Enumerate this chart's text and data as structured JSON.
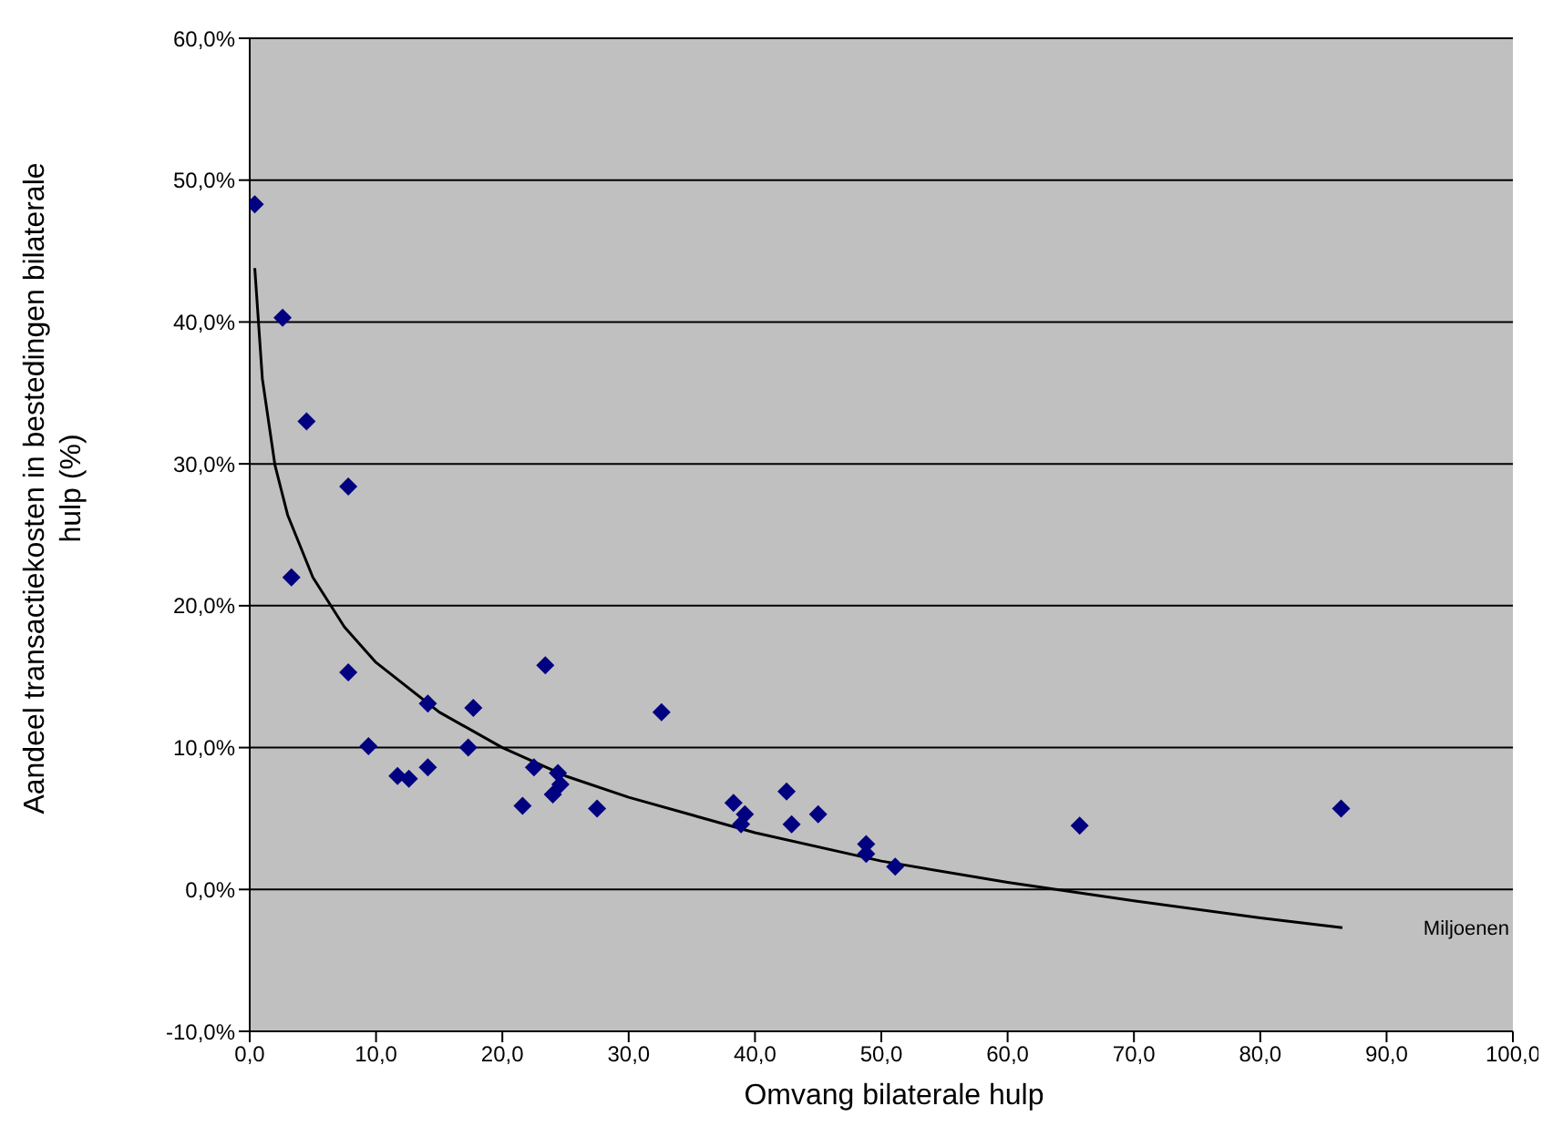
{
  "chart_data": {
    "type": "scatter",
    "xlabel": "Omvang bilaterale hulp",
    "ylabel": "Aandeel transactiekosten in bestedingen bilaterale hulp (%)",
    "annotations": [
      "Miljoenen"
    ],
    "xlim": [
      0,
      100
    ],
    "xticks": [
      {
        "value": 0,
        "label": "0,0"
      },
      {
        "value": 10,
        "label": "10,0"
      },
      {
        "value": 20,
        "label": "20,0"
      },
      {
        "value": 30,
        "label": "30,0"
      },
      {
        "value": 40,
        "label": "40,0"
      },
      {
        "value": 50,
        "label": "50,0"
      },
      {
        "value": 60,
        "label": "60,0"
      },
      {
        "value": 70,
        "label": "70,0"
      },
      {
        "value": 80,
        "label": "80,0"
      },
      {
        "value": 90,
        "label": "90,0"
      },
      {
        "value": 100,
        "label": "100,0"
      }
    ],
    "ylim": [
      -10,
      60
    ],
    "yticks": [
      {
        "value": -10,
        "label": "-10,0%"
      },
      {
        "value": 0,
        "label": "0,0%"
      },
      {
        "value": 10,
        "label": "10,0%"
      },
      {
        "value": 20,
        "label": "20,0%"
      },
      {
        "value": 30,
        "label": "30,0%"
      },
      {
        "value": 40,
        "label": "40,0%"
      },
      {
        "value": 50,
        "label": "50,0%"
      },
      {
        "value": 60,
        "label": "60,0%"
      }
    ],
    "grid": "y",
    "legend": false,
    "marker": "diamond",
    "series": [
      {
        "color": "#000080",
        "x": [
          0.4,
          2.6,
          4.5,
          3.3,
          7.8,
          7.8,
          9.4,
          11.7,
          12.6,
          14.1,
          14.1,
          17.3,
          17.7,
          21.6,
          22.5,
          23.4,
          24.4,
          24.6,
          24.0,
          27.5,
          32.6,
          38.3,
          39.2,
          38.9,
          42.5,
          42.9,
          45.0,
          48.8,
          48.8,
          51.1,
          65.7,
          86.4
        ],
        "values": [
          48.3,
          40.3,
          33.0,
          22.0,
          28.4,
          15.3,
          10.1,
          8.0,
          7.8,
          13.1,
          8.6,
          10.0,
          12.8,
          5.9,
          8.6,
          15.8,
          8.2,
          7.4,
          6.7,
          5.7,
          12.5,
          6.1,
          5.3,
          4.6,
          6.9,
          4.6,
          5.3,
          3.2,
          2.5,
          1.6,
          4.5,
          5.7
        ]
      },
      {
        "type": "line",
        "color": "#000000",
        "marker": "none",
        "line_style": "solid",
        "x": [
          0.4,
          1,
          2,
          3,
          5,
          7.5,
          10,
          15,
          20,
          25,
          30,
          40,
          50,
          60,
          70,
          80,
          86.5
        ],
        "values": [
          43.8,
          36,
          29.9,
          26.4,
          22,
          18.5,
          16,
          12.5,
          10,
          8,
          6.5,
          4,
          2,
          0.5,
          -0.8,
          -2,
          -2.7
        ]
      }
    ]
  }
}
